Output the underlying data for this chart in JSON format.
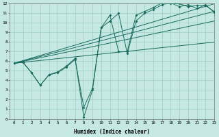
{
  "bg_color": "#c5e8e2",
  "grid_color": "#9ecfc5",
  "line_color": "#1a6b5e",
  "xlim": [
    -0.5,
    23
  ],
  "ylim": [
    0,
    12
  ],
  "xticks": [
    0,
    1,
    2,
    3,
    4,
    5,
    6,
    7,
    8,
    9,
    10,
    11,
    12,
    13,
    14,
    15,
    16,
    17,
    18,
    19,
    20,
    21,
    22,
    23
  ],
  "yticks": [
    0,
    1,
    2,
    3,
    4,
    5,
    6,
    7,
    8,
    9,
    10,
    11,
    12
  ],
  "xlabel": "Humidex (Indice chaleur)",
  "line1_x": [
    0,
    1,
    2,
    3,
    4,
    5,
    6,
    7,
    8,
    9,
    10,
    11,
    12,
    13,
    14,
    15,
    16,
    17,
    18,
    19,
    20,
    21,
    22,
    23
  ],
  "line1_y": [
    5.8,
    5.9,
    4.8,
    3.5,
    4.6,
    4.8,
    5.4,
    6.2,
    1.2,
    3.2,
    9.5,
    10.2,
    11.0,
    6.8,
    10.2,
    11.0,
    11.4,
    11.9,
    12.1,
    11.7,
    11.9,
    11.5,
    11.9,
    11.1
  ],
  "line2_x": [
    0,
    1,
    2,
    3,
    4,
    5,
    6,
    7,
    8,
    9,
    10,
    11,
    12,
    13,
    14,
    15,
    16,
    17,
    18,
    19,
    20,
    21,
    22,
    23
  ],
  "line2_y": [
    5.8,
    5.9,
    4.8,
    3.5,
    4.6,
    4.9,
    5.5,
    6.3,
    0.2,
    3.0,
    9.5,
    10.8,
    7.0,
    7.0,
    10.8,
    11.2,
    11.6,
    12.1,
    12.0,
    12.0,
    11.7,
    11.8,
    11.8,
    11.2
  ],
  "trend1_x": [
    0,
    23
  ],
  "trend1_y": [
    5.8,
    12.0
  ],
  "trend2_x": [
    0,
    23
  ],
  "trend2_y": [
    5.8,
    11.2
  ],
  "trend3_x": [
    0,
    23
  ],
  "trend3_y": [
    5.8,
    10.2
  ],
  "trend4_x": [
    0,
    23
  ],
  "trend4_y": [
    5.8,
    8.0
  ]
}
